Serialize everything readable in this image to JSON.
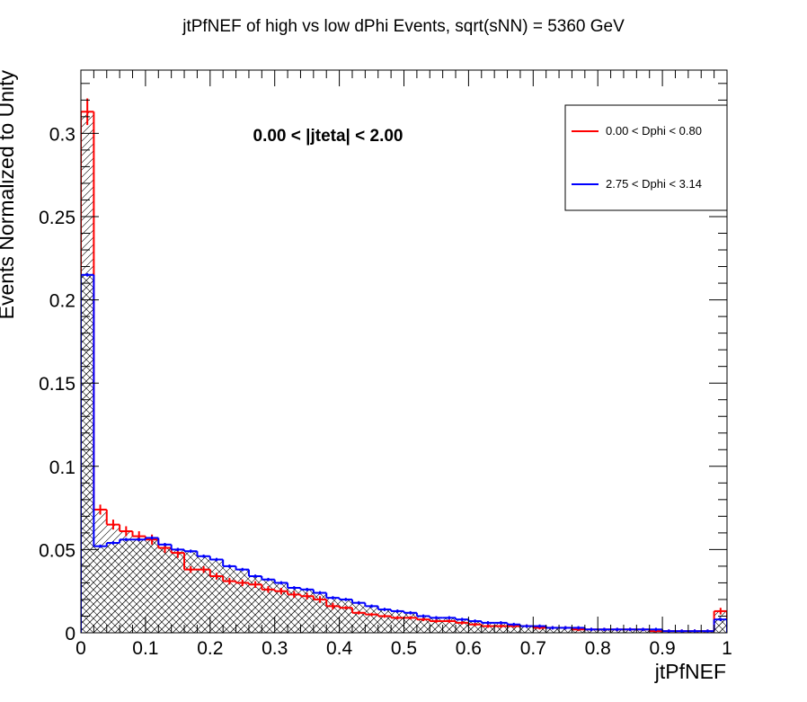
{
  "chart_data": {
    "type": "histogram",
    "title": "jtPfNEF of high vs low dPhi Events, sqrt(sNN) = 5360 GeV",
    "xlabel": "jtPfNEF",
    "ylabel": "Events Normalized to Unity",
    "annotation": "0.00 < |jteta| < 2.00",
    "xlim": [
      0,
      1
    ],
    "ylim": [
      0,
      0.338
    ],
    "x_ticks": [
      "0",
      "0.1",
      "0.2",
      "0.3",
      "0.4",
      "0.5",
      "0.6",
      "0.7",
      "0.8",
      "0.9",
      "1"
    ],
    "y_ticks": [
      "0",
      "0.05",
      "0.1",
      "0.15",
      "0.2",
      "0.25",
      "0.3"
    ],
    "legend_position": "top-right",
    "bin_edges_start": 0,
    "bin_width": 0.02,
    "series": [
      {
        "name": "0.00 < Dphi < 0.80",
        "color": "#ff0000",
        "fill": "diagonal-hatch",
        "values": [
          0.313,
          0.074,
          0.065,
          0.061,
          0.058,
          0.056,
          0.051,
          0.048,
          0.038,
          0.038,
          0.034,
          0.031,
          0.03,
          0.029,
          0.026,
          0.025,
          0.023,
          0.022,
          0.02,
          0.016,
          0.015,
          0.012,
          0.011,
          0.01,
          0.009,
          0.009,
          0.008,
          0.007,
          0.007,
          0.006,
          0.005,
          0.004,
          0.004,
          0.004,
          0.004,
          0.003,
          0.003,
          0.003,
          0.002,
          0.002,
          0.002,
          0.002,
          0.002,
          0.002,
          0.001,
          0.001,
          0.001,
          0.001,
          0.001,
          0.013
        ],
        "errors": [
          0.008,
          0.003,
          0.003,
          0.003,
          0.003,
          0.003,
          0.003,
          0.003,
          0.002,
          0.002,
          0.002,
          0.002,
          0.002,
          0.002,
          0.002,
          0.002,
          0.002,
          0.002,
          0.002,
          0.002,
          0.001,
          0.001,
          0.001,
          0.001,
          0.001,
          0.001,
          0.001,
          0.001,
          0.001,
          0.001,
          0.001,
          0.001,
          0.001,
          0.001,
          0.001,
          0.001,
          0.001,
          0.001,
          0.001,
          0.001,
          0.001,
          0.001,
          0.001,
          0.001,
          0.001,
          0.001,
          0.001,
          0.001,
          0.001,
          0.002
        ]
      },
      {
        "name": "2.75 < Dphi < 3.14",
        "color": "#0000ff",
        "fill": "cross-hatch",
        "values": [
          0.215,
          0.052,
          0.054,
          0.056,
          0.056,
          0.057,
          0.053,
          0.05,
          0.049,
          0.046,
          0.044,
          0.04,
          0.038,
          0.034,
          0.032,
          0.03,
          0.027,
          0.026,
          0.024,
          0.021,
          0.02,
          0.018,
          0.016,
          0.014,
          0.013,
          0.012,
          0.01,
          0.009,
          0.009,
          0.008,
          0.007,
          0.006,
          0.006,
          0.005,
          0.004,
          0.004,
          0.003,
          0.003,
          0.003,
          0.002,
          0.002,
          0.002,
          0.002,
          0.002,
          0.002,
          0.001,
          0.001,
          0.001,
          0.001,
          0.008
        ],
        "errors": [
          0.001,
          0.001,
          0.001,
          0.001,
          0.001,
          0.001,
          0.001,
          0.001,
          0.001,
          0.001,
          0.001,
          0.001,
          0.001,
          0.001,
          0.001,
          0.001,
          0.001,
          0.001,
          0.001,
          0.001,
          0.001,
          0.001,
          0.001,
          0.001,
          0.001,
          0.001,
          0.001,
          0.001,
          0.001,
          0.001,
          0.001,
          0.001,
          0.001,
          0.001,
          0.001,
          0.001,
          0.001,
          0.001,
          0.001,
          0.001,
          0.001,
          0.001,
          0.001,
          0.001,
          0.001,
          0.001,
          0.001,
          0.001,
          0.001,
          0.001
        ]
      }
    ]
  }
}
